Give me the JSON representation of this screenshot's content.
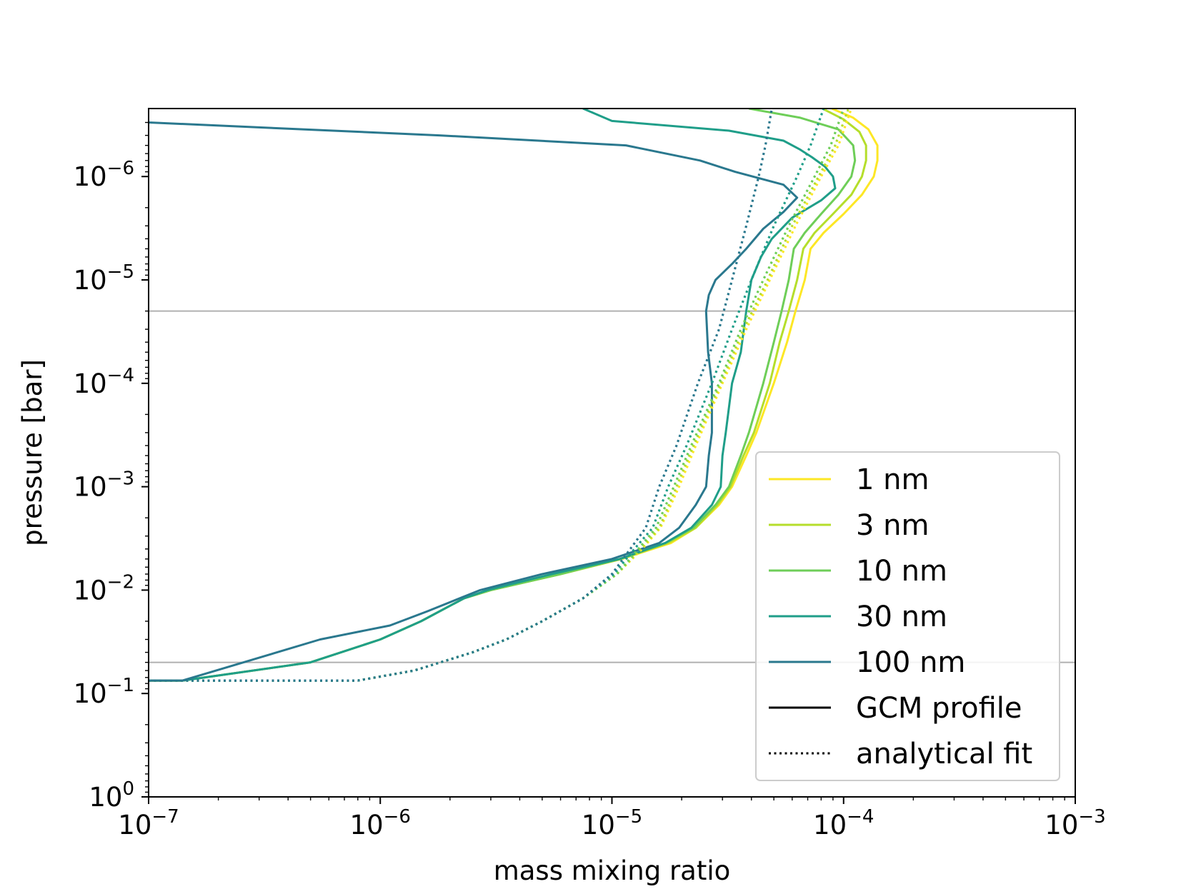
{
  "chart_data": {
    "type": "line",
    "xlabel": "mass mixing ratio",
    "ylabel": "pressure [bar]",
    "xscale": "log",
    "yscale": "log",
    "xlim": [
      1e-07,
      0.001
    ],
    "ylim": [
      1.0,
      2.2e-07
    ],
    "y_inverted": true,
    "xticks": [
      {
        "value": 1e-07,
        "base": "10",
        "exp": "−7"
      },
      {
        "value": 1e-06,
        "base": "10",
        "exp": "−6"
      },
      {
        "value": 1e-05,
        "base": "10",
        "exp": "−5"
      },
      {
        "value": 0.0001,
        "base": "10",
        "exp": "−4"
      },
      {
        "value": 0.001,
        "base": "10",
        "exp": "−3"
      }
    ],
    "yticks": [
      {
        "value": 1e-06,
        "base": "10",
        "exp": "−6"
      },
      {
        "value": 1e-05,
        "base": "10",
        "exp": "−5"
      },
      {
        "value": 0.0001,
        "base": "10",
        "exp": "−4"
      },
      {
        "value": 0.001,
        "base": "10",
        "exp": "−3"
      },
      {
        "value": 0.01,
        "base": "10",
        "exp": "−2"
      },
      {
        "value": 0.1,
        "base": "10",
        "exp": "−1"
      },
      {
        "value": 1,
        "base": "10",
        "exp": "0"
      }
    ],
    "hlines": [
      {
        "y": 2e-05,
        "color": "#b0b0b0"
      },
      {
        "y": 0.05,
        "color": "#b0b0b0"
      }
    ],
    "legend": {
      "position": "lower right",
      "entries": [
        {
          "label": "1 nm",
          "color": "#fde725",
          "style": "solid"
        },
        {
          "label": "3 nm",
          "color": "#b5de2b",
          "style": "solid"
        },
        {
          "label": "10 nm",
          "color": "#6ece58",
          "style": "solid"
        },
        {
          "label": "30 nm",
          "color": "#1f9e89",
          "style": "solid"
        },
        {
          "label": "100 nm",
          "color": "#2a788e",
          "style": "solid"
        },
        {
          "label": "GCM profile",
          "color": "#000000",
          "style": "solid"
        },
        {
          "label": "analytical fit",
          "color": "#000000",
          "style": "dotted"
        }
      ]
    },
    "series": [
      {
        "name": "1 nm",
        "kind": "GCM profile",
        "color": "#fde725",
        "style": "solid",
        "points": [
          [
            8.9e-05,
            2.2e-07
          ],
          [
            0.00011,
            2.7e-07
          ],
          [
            0.000128,
            3.5e-07
          ],
          [
            0.00014,
            5e-07
          ],
          [
            0.00014,
            7e-07
          ],
          [
            0.000135,
            1e-06
          ],
          [
            0.00012,
            1.5e-06
          ],
          [
            0.0001,
            2.3e-06
          ],
          [
            8.2e-05,
            3.5e-06
          ],
          [
            7.2e-05,
            5e-06
          ],
          [
            6.8e-05,
            1e-05
          ],
          [
            6.2e-05,
            2e-05
          ],
          [
            5.7e-05,
            4e-05
          ],
          [
            5e-05,
            0.0001
          ],
          [
            4.2e-05,
            0.0003
          ],
          [
            3.8e-05,
            0.0005
          ],
          [
            3.3e-05,
            0.001
          ],
          [
            2.9e-05,
            0.0015
          ],
          [
            2.3e-05,
            0.0025
          ],
          [
            1.8e-05,
            0.0035
          ],
          [
            1.1e-05,
            0.005
          ],
          [
            6e-06,
            0.007
          ],
          [
            3e-06,
            0.01
          ],
          [
            2.3e-06,
            0.012
          ],
          [
            1.5e-06,
            0.02
          ],
          [
            1e-06,
            0.03
          ],
          [
            5e-07,
            0.05
          ],
          [
            1.4e-07,
            0.075
          ],
          [
            1e-07,
            0.075
          ]
        ]
      },
      {
        "name": "3 nm",
        "kind": "GCM profile",
        "color": "#b5de2b",
        "style": "solid",
        "points": [
          [
            8.1e-05,
            2.2e-07
          ],
          [
            0.0001,
            2.8e-07
          ],
          [
            0.000117,
            3.7e-07
          ],
          [
            0.000125,
            5e-07
          ],
          [
            0.000125,
            7e-07
          ],
          [
            0.00012,
            1e-06
          ],
          [
            0.000108,
            1.5e-06
          ],
          [
            9e-05,
            2.3e-06
          ],
          [
            7.5e-05,
            3.5e-06
          ],
          [
            6.7e-05,
            5e-06
          ],
          [
            6.3e-05,
            1e-05
          ],
          [
            5.8e-05,
            2e-05
          ],
          [
            5.3e-05,
            4e-05
          ],
          [
            4.8e-05,
            0.0001
          ],
          [
            4.1e-05,
            0.0003
          ],
          [
            3.7e-05,
            0.0005
          ],
          [
            3.25e-05,
            0.001
          ],
          [
            2.85e-05,
            0.0015
          ],
          [
            2.3e-05,
            0.0025
          ],
          [
            1.75e-05,
            0.0035
          ],
          [
            1.1e-05,
            0.005
          ],
          [
            6e-06,
            0.007
          ],
          [
            3e-06,
            0.01
          ],
          [
            2.3e-06,
            0.012
          ],
          [
            1.5e-06,
            0.02
          ],
          [
            1e-06,
            0.03
          ],
          [
            5e-07,
            0.05
          ],
          [
            1.4e-07,
            0.075
          ],
          [
            1e-07,
            0.075
          ]
        ]
      },
      {
        "name": "10 nm",
        "kind": "GCM profile",
        "color": "#6ece58",
        "style": "solid",
        "points": [
          [
            3.9e-05,
            2.2e-07
          ],
          [
            6.5e-05,
            2.7e-07
          ],
          [
            9.5e-05,
            3.5e-07
          ],
          [
            0.00011,
            5e-07
          ],
          [
            0.000112,
            7e-07
          ],
          [
            0.000108,
            1e-06
          ],
          [
            9.5e-05,
            1.5e-06
          ],
          [
            8e-05,
            2.3e-06
          ],
          [
            6.8e-05,
            3.5e-06
          ],
          [
            6.1e-05,
            5e-06
          ],
          [
            5.8e-05,
            1e-05
          ],
          [
            5.4e-05,
            2e-05
          ],
          [
            5e-05,
            4e-05
          ],
          [
            4.5e-05,
            0.0001
          ],
          [
            3.9e-05,
            0.0003
          ],
          [
            3.6e-05,
            0.0005
          ],
          [
            3.2e-05,
            0.001
          ],
          [
            2.8e-05,
            0.0015
          ],
          [
            2.25e-05,
            0.0025
          ],
          [
            1.7e-05,
            0.0035
          ],
          [
            1.08e-05,
            0.005
          ],
          [
            6e-06,
            0.007
          ],
          [
            3e-06,
            0.01
          ],
          [
            2.3e-06,
            0.012
          ],
          [
            1.5e-06,
            0.02
          ],
          [
            1e-06,
            0.03
          ],
          [
            5e-07,
            0.05
          ],
          [
            1.4e-07,
            0.075
          ],
          [
            1e-07,
            0.075
          ]
        ]
      },
      {
        "name": "30 nm",
        "kind": "GCM profile",
        "color": "#1f9e89",
        "style": "solid",
        "points": [
          [
            7.5e-06,
            2.2e-07
          ],
          [
            1e-05,
            2.9e-07
          ],
          [
            3.2e-05,
            3.6e-07
          ],
          [
            5.5e-05,
            4.5e-07
          ],
          [
            6.5e-05,
            5.5e-07
          ],
          [
            7.3e-05,
            6.5e-07
          ],
          [
            8.3e-05,
            8e-07
          ],
          [
            9e-05,
            1e-06
          ],
          [
            9.2e-05,
            1.3e-06
          ],
          [
            8e-05,
            1.7e-06
          ],
          [
            6e-05,
            2.5e-06
          ],
          [
            4.9e-05,
            4e-06
          ],
          [
            4.4e-05,
            6e-06
          ],
          [
            4e-05,
            1e-05
          ],
          [
            3.8e-05,
            2e-05
          ],
          [
            3.6e-05,
            5e-05
          ],
          [
            3.3e-05,
            0.0001
          ],
          [
            3.1e-05,
            0.0003
          ],
          [
            3e-05,
            0.0005
          ],
          [
            2.95e-05,
            0.001
          ],
          [
            2.7e-05,
            0.0015
          ],
          [
            2.2e-05,
            0.0025
          ],
          [
            1.7e-05,
            0.0035
          ],
          [
            1.08e-05,
            0.005
          ],
          [
            5.5e-06,
            0.007
          ],
          [
            2.9e-06,
            0.01
          ],
          [
            2.3e-06,
            0.012
          ],
          [
            1.5e-06,
            0.02
          ],
          [
            1e-06,
            0.03
          ],
          [
            5e-07,
            0.05
          ],
          [
            1.4e-07,
            0.075
          ],
          [
            1e-07,
            0.075
          ]
        ]
      },
      {
        "name": "100 nm",
        "kind": "GCM profile",
        "color": "#2a788e",
        "style": "solid",
        "points": [
          [
            1e-07,
            3e-07
          ],
          [
            1.8e-06,
            4e-07
          ],
          [
            1.15e-05,
            5e-07
          ],
          [
            2.4e-05,
            7e-07
          ],
          [
            3.4e-05,
            9e-07
          ],
          [
            5.5e-05,
            1.2e-06
          ],
          [
            6.3e-05,
            1.6e-06
          ],
          [
            5.5e-05,
            2.2e-06
          ],
          [
            4.5e-05,
            3.2e-06
          ],
          [
            3.8e-05,
            5e-06
          ],
          [
            3.3e-05,
            7e-06
          ],
          [
            2.8e-05,
            1e-05
          ],
          [
            2.62e-05,
            1.4e-05
          ],
          [
            2.55e-05,
            2e-05
          ],
          [
            2.6e-05,
            5e-05
          ],
          [
            2.7e-05,
            0.0001
          ],
          [
            2.7e-05,
            0.0003
          ],
          [
            2.62e-05,
            0.0005
          ],
          [
            2.55e-05,
            0.001
          ],
          [
            2.3e-05,
            0.0015
          ],
          [
            1.95e-05,
            0.0025
          ],
          [
            1.6e-05,
            0.0035
          ],
          [
            1e-05,
            0.005
          ],
          [
            5e-06,
            0.007
          ],
          [
            2.7e-06,
            0.01
          ],
          [
            1.6e-06,
            0.016
          ],
          [
            1.1e-06,
            0.022
          ],
          [
            5.5e-07,
            0.03
          ],
          [
            1.4e-07,
            0.075
          ],
          [
            1e-07,
            0.075
          ]
        ]
      },
      {
        "name": "1 nm",
        "kind": "analytical fit",
        "color": "#fde725",
        "style": "dotted",
        "points": [
          [
            1e-07,
            0.075
          ],
          [
            8e-07,
            0.075
          ],
          [
            1.4e-06,
            0.06
          ],
          [
            2.5e-06,
            0.04
          ],
          [
            3.5e-06,
            0.03
          ],
          [
            5e-06,
            0.02
          ],
          [
            7.5e-06,
            0.012
          ],
          [
            1.05e-05,
            0.007
          ],
          [
            1.35e-05,
            0.004
          ],
          [
            1.62e-05,
            0.0025
          ],
          [
            1.95e-05,
            0.001
          ],
          [
            2.3e-05,
            0.0004
          ],
          [
            3e-05,
            0.0001
          ],
          [
            3.8e-05,
            3e-05
          ],
          [
            4.8e-05,
            1e-05
          ],
          [
            6.2e-05,
            3e-06
          ],
          [
            8e-05,
            1e-06
          ],
          [
            9.5e-05,
            5e-07
          ],
          [
            0.000108,
            2.2e-07
          ]
        ]
      },
      {
        "name": "3 nm",
        "kind": "analytical fit",
        "color": "#b5de2b",
        "style": "dotted",
        "points": [
          [
            1e-07,
            0.075
          ],
          [
            8e-07,
            0.075
          ],
          [
            1.4e-06,
            0.06
          ],
          [
            2.5e-06,
            0.04
          ],
          [
            3.5e-06,
            0.03
          ],
          [
            5e-06,
            0.02
          ],
          [
            7.5e-06,
            0.012
          ],
          [
            1.05e-05,
            0.007
          ],
          [
            1.33e-05,
            0.004
          ],
          [
            1.6e-05,
            0.0025
          ],
          [
            1.9e-05,
            0.001
          ],
          [
            2.25e-05,
            0.0004
          ],
          [
            2.95e-05,
            0.0001
          ],
          [
            3.7e-05,
            3e-05
          ],
          [
            4.7e-05,
            1e-05
          ],
          [
            6e-05,
            3e-06
          ],
          [
            7.8e-05,
            1e-06
          ],
          [
            9.2e-05,
            5e-07
          ],
          [
            0.000105,
            2.2e-07
          ]
        ]
      },
      {
        "name": "10 nm",
        "kind": "analytical fit",
        "color": "#6ece58",
        "style": "dotted",
        "points": [
          [
            1e-07,
            0.075
          ],
          [
            8e-07,
            0.075
          ],
          [
            1.4e-06,
            0.06
          ],
          [
            2.5e-06,
            0.04
          ],
          [
            3.5e-06,
            0.03
          ],
          [
            5e-06,
            0.02
          ],
          [
            7.5e-06,
            0.012
          ],
          [
            1.05e-05,
            0.007
          ],
          [
            1.3e-05,
            0.004
          ],
          [
            1.55e-05,
            0.0025
          ],
          [
            1.85e-05,
            0.001
          ],
          [
            2.2e-05,
            0.0004
          ],
          [
            2.9e-05,
            0.0001
          ],
          [
            3.6e-05,
            3e-05
          ],
          [
            4.5e-05,
            1e-05
          ],
          [
            5.8e-05,
            3e-06
          ],
          [
            7.5e-05,
            1e-06
          ],
          [
            8.8e-05,
            5e-07
          ],
          [
            0.0001,
            2.2e-07
          ]
        ]
      },
      {
        "name": "30 nm",
        "kind": "analytical fit",
        "color": "#1f9e89",
        "style": "dotted",
        "points": [
          [
            1e-07,
            0.075
          ],
          [
            8e-07,
            0.075
          ],
          [
            1.4e-06,
            0.06
          ],
          [
            2.5e-06,
            0.04
          ],
          [
            3.5e-06,
            0.03
          ],
          [
            5e-06,
            0.02
          ],
          [
            7.5e-06,
            0.012
          ],
          [
            1.02e-05,
            0.007
          ],
          [
            1.25e-05,
            0.004
          ],
          [
            1.5e-05,
            0.0025
          ],
          [
            1.75e-05,
            0.001
          ],
          [
            2.1e-05,
            0.0004
          ],
          [
            2.7e-05,
            0.0001
          ],
          [
            3.3e-05,
            3e-05
          ],
          [
            4e-05,
            1e-05
          ],
          [
            5e-05,
            3e-06
          ],
          [
            6.3e-05,
            1e-06
          ],
          [
            7.2e-05,
            5e-07
          ],
          [
            8.2e-05,
            2.2e-07
          ]
        ]
      },
      {
        "name": "100 nm",
        "kind": "analytical fit",
        "color": "#2a788e",
        "style": "dotted",
        "points": [
          [
            1e-07,
            0.075
          ],
          [
            8e-07,
            0.075
          ],
          [
            1.4e-06,
            0.06
          ],
          [
            2.5e-06,
            0.04
          ],
          [
            3.5e-06,
            0.03
          ],
          [
            5e-06,
            0.02
          ],
          [
            7.5e-06,
            0.012
          ],
          [
            1e-05,
            0.007
          ],
          [
            1.2e-05,
            0.004
          ],
          [
            1.4e-05,
            0.0025
          ],
          [
            1.6e-05,
            0.001
          ],
          [
            1.9e-05,
            0.0004
          ],
          [
            2.35e-05,
            0.0001
          ],
          [
            2.9e-05,
            3e-05
          ],
          [
            3.3e-05,
            1e-05
          ],
          [
            3.8e-05,
            3e-06
          ],
          [
            4.3e-05,
            1e-06
          ],
          [
            4.6e-05,
            5e-07
          ],
          [
            4.9e-05,
            2.2e-07
          ]
        ]
      }
    ]
  }
}
